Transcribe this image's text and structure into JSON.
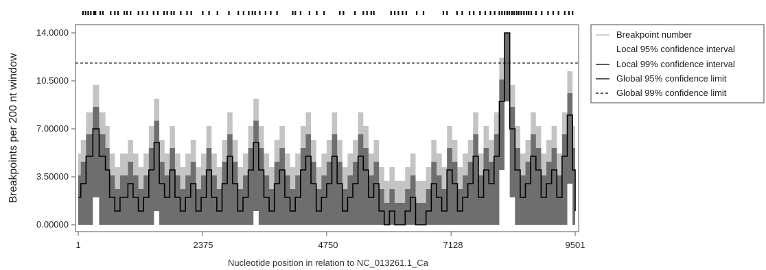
{
  "chart_data": {
    "type": "area",
    "xlabel": "Nucleotide position in relation to NC_013261.1_Ca",
    "ylabel": "Breakpoints per 200 nt window",
    "xlim": [
      1,
      9501
    ],
    "ylim": [
      0,
      14.0
    ],
    "x_ticks": [
      "1",
      "2375",
      "4750",
      "7128",
      "9501"
    ],
    "y_ticks": [
      "0.00000",
      "3.50000",
      "7.00000",
      "10.5000",
      "14.0000"
    ],
    "global_99_limit": 11.8,
    "legend": [
      "Breakpoint number",
      "Local 95% confidence interval",
      "Local 99% confidence interval",
      "Global 95% confidence limit",
      "Global 99% confidence limit"
    ],
    "breakpoint_number_series": {
      "x": [
        1,
        50,
        150,
        280,
        400,
        520,
        600,
        700,
        800,
        950,
        1050,
        1150,
        1250,
        1350,
        1450,
        1550,
        1650,
        1750,
        1850,
        1950,
        2050,
        2150,
        2250,
        2350,
        2450,
        2550,
        2650,
        2750,
        2850,
        2950,
        3050,
        3150,
        3250,
        3350,
        3450,
        3550,
        3650,
        3750,
        3850,
        3950,
        4050,
        4150,
        4250,
        4350,
        4450,
        4550,
        4650,
        4750,
        4850,
        4950,
        5050,
        5150,
        5250,
        5350,
        5450,
        5550,
        5650,
        5750,
        5850,
        5950,
        6050,
        6150,
        6250,
        6350,
        6450,
        6550,
        6650,
        6750,
        6850,
        6950,
        7050,
        7150,
        7250,
        7350,
        7450,
        7550,
        7650,
        7750,
        7850,
        7950,
        8050,
        8150,
        8250,
        8350,
        8450,
        8550,
        8650,
        8750,
        8850,
        8950,
        9050,
        9150,
        9250,
        9350,
        9450,
        9501
      ],
      "y": [
        2,
        3,
        5,
        7,
        5,
        4,
        2,
        1,
        2,
        3,
        2,
        1,
        2,
        4,
        6,
        3,
        2,
        4,
        2,
        1,
        2,
        3,
        1,
        2,
        4,
        2,
        1,
        3,
        5,
        3,
        1,
        2,
        4,
        6,
        4,
        2,
        1,
        3,
        4,
        2,
        1,
        2,
        4,
        5,
        3,
        1,
        2,
        3,
        5,
        3,
        1,
        2,
        3,
        5,
        4,
        2,
        3,
        1,
        0,
        1,
        0,
        0,
        1,
        2,
        0,
        0,
        1,
        3,
        2,
        1,
        4,
        3,
        1,
        2,
        3,
        5,
        2,
        4,
        3,
        5,
        9,
        14,
        7,
        4,
        2,
        3,
        5,
        4,
        2,
        3,
        4,
        2,
        5,
        8,
        4,
        1
      ]
    },
    "breakpoint_markers_x": [
      90,
      140,
      190,
      240,
      300,
      330,
      420,
      470,
      620,
      700,
      760,
      880,
      930,
      1000,
      1150,
      1230,
      1320,
      1440,
      1520,
      1640,
      1700,
      1780,
      1830,
      1960,
      2080,
      2160,
      2380,
      2500,
      2660,
      2880,
      3060,
      3160,
      3260,
      3330,
      3380,
      3470,
      3580,
      3680,
      3800,
      4100,
      4150,
      4250,
      4420,
      4560,
      4700,
      5000,
      5070,
      5290,
      5450,
      5520,
      5600,
      5650,
      5980,
      6050,
      6120,
      6200,
      6270,
      6470,
      6600,
      6980,
      7050,
      7240,
      7340,
      7480,
      7560,
      7680,
      7780,
      7880,
      7960,
      8050,
      8100,
      8150,
      8200,
      8240,
      8290,
      8330,
      8380,
      8420,
      8470,
      8520,
      8570,
      8610,
      8660,
      8750,
      8860,
      8980,
      9080,
      9180,
      9300,
      9380,
      9450
    ]
  }
}
